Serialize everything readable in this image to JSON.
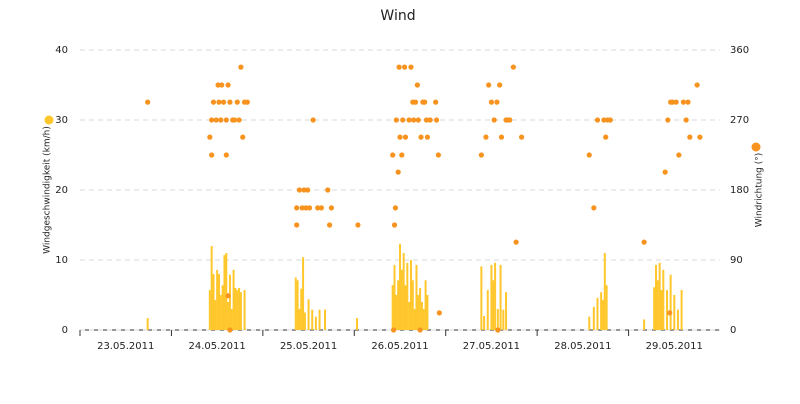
{
  "chart_data": {
    "type": "combo",
    "title": "Wind",
    "xlim": [
      0,
      7
    ],
    "xticks": [
      {
        "value": 0,
        "label": "23.05.2011"
      },
      {
        "value": 1,
        "label": "24.05.2011"
      },
      {
        "value": 2,
        "label": "25.05.2011"
      },
      {
        "value": 3,
        "label": "26.05.2011"
      },
      {
        "value": 4,
        "label": "27.05.2011"
      },
      {
        "value": 5,
        "label": "28.05.2011"
      },
      {
        "value": 6,
        "label": "29.05.2011"
      }
    ],
    "ylim": [
      0,
      40
    ],
    "yticks": [
      0,
      10,
      20,
      30,
      40
    ],
    "y2lim": [
      0,
      360
    ],
    "y2ticks": [
      0,
      90,
      180,
      270,
      360
    ],
    "grid": true,
    "series": [
      {
        "name": "Windgeschwindigkeit (km/h)",
        "type": "bar",
        "color": "#ffc72c",
        "x": [
          0.74,
          1.42,
          1.44,
          1.46,
          1.48,
          1.5,
          1.52,
          1.54,
          1.56,
          1.58,
          1.6,
          1.62,
          1.64,
          1.66,
          1.68,
          1.7,
          1.72,
          1.74,
          1.76,
          1.8,
          2.36,
          2.38,
          2.4,
          2.42,
          2.44,
          2.46,
          2.5,
          2.54,
          2.58,
          2.62,
          2.68,
          3.03,
          3.42,
          3.44,
          3.46,
          3.48,
          3.5,
          3.52,
          3.54,
          3.56,
          3.58,
          3.6,
          3.62,
          3.64,
          3.66,
          3.68,
          3.7,
          3.72,
          3.74,
          3.76,
          3.78,
          3.8,
          4.39,
          4.42,
          4.46,
          4.5,
          4.52,
          4.54,
          4.57,
          4.6,
          4.63,
          4.66,
          5.57,
          5.62,
          5.66,
          5.7,
          5.72,
          5.74,
          5.76,
          6.17,
          6.28,
          6.3,
          6.32,
          6.34,
          6.36,
          6.38,
          6.42,
          6.46,
          6.5,
          6.54,
          6.58
        ],
        "values": [
          1.7,
          5.7,
          12,
          8,
          4.3,
          8.6,
          8,
          5,
          6.4,
          10.7,
          11,
          4,
          7.9,
          3,
          8.6,
          6,
          5.7,
          6,
          5.4,
          5.7,
          7.5,
          7.1,
          3,
          5.9,
          10.4,
          2.5,
          4.4,
          2.9,
          1.9,
          2.9,
          2.9,
          1.7,
          6.4,
          9.3,
          5,
          7.1,
          12.3,
          8.6,
          11,
          6.4,
          9.6,
          4,
          10,
          7.1,
          3,
          9.3,
          5,
          6,
          4,
          3,
          7.1,
          5,
          9.1,
          2,
          5.7,
          9.3,
          7.1,
          9.6,
          3,
          9.3,
          2.9,
          5.4,
          1.9,
          3.3,
          4.6,
          5.4,
          4.3,
          11,
          6.4,
          1.5,
          6.1,
          9.3,
          7.1,
          9.6,
          5.7,
          8.6,
          5.7,
          7.9,
          5,
          2.9,
          5.7
        ]
      },
      {
        "name": "Windrichtung (°)",
        "type": "scatter",
        "axis": "y2",
        "color": "#f7931e",
        "x": [
          0.74,
          1.42,
          1.44,
          1.44,
          1.46,
          1.49,
          1.51,
          1.52,
          1.54,
          1.55,
          1.57,
          1.6,
          1.6,
          1.62,
          1.64,
          1.67,
          1.69,
          1.72,
          1.74,
          1.76,
          1.78,
          1.8,
          1.83,
          1.62,
          1.64,
          2.37,
          2.37,
          2.4,
          2.43,
          2.45,
          2.47,
          2.49,
          2.51,
          2.55,
          2.6,
          2.64,
          2.71,
          2.73,
          2.75,
          3.04,
          3.42,
          3.44,
          3.45,
          3.46,
          3.48,
          3.49,
          3.5,
          3.52,
          3.53,
          3.55,
          3.56,
          3.6,
          3.62,
          3.64,
          3.65,
          3.67,
          3.69,
          3.7,
          3.73,
          3.75,
          3.77,
          3.79,
          3.8,
          3.83,
          3.89,
          3.9,
          3.92,
          3.93,
          3.43,
          3.72,
          4.39,
          4.44,
          4.47,
          4.5,
          4.53,
          4.56,
          4.59,
          4.61,
          4.66,
          4.68,
          4.7,
          4.74,
          4.77,
          4.83,
          4.57,
          5.57,
          5.62,
          5.66,
          5.73,
          5.75,
          5.77,
          5.8,
          6.17,
          6.4,
          6.43,
          6.46,
          6.48,
          6.52,
          6.55,
          6.6,
          6.63,
          6.65,
          6.67,
          6.75,
          6.78,
          6.45
        ],
        "values": [
          293,
          248,
          270,
          225,
          293,
          270,
          315,
          293,
          270,
          315,
          293,
          270,
          225,
          315,
          293,
          270,
          270,
          293,
          270,
          338,
          248,
          293,
          293,
          44,
          0,
          135,
          157,
          180,
          157,
          180,
          157,
          180,
          157,
          270,
          157,
          157,
          180,
          135,
          157,
          135,
          225,
          135,
          157,
          270,
          203,
          338,
          248,
          225,
          270,
          338,
          248,
          270,
          338,
          293,
          270,
          293,
          315,
          270,
          248,
          293,
          293,
          270,
          248,
          270,
          293,
          270,
          225,
          22,
          0,
          0,
          225,
          248,
          315,
          293,
          270,
          293,
          315,
          248,
          270,
          270,
          270,
          338,
          113,
          248,
          0,
          225,
          157,
          270,
          270,
          248,
          270,
          270,
          113,
          203,
          270,
          293,
          293,
          293,
          225,
          293,
          270,
          293,
          248,
          315,
          248,
          22
        ]
      }
    ]
  }
}
